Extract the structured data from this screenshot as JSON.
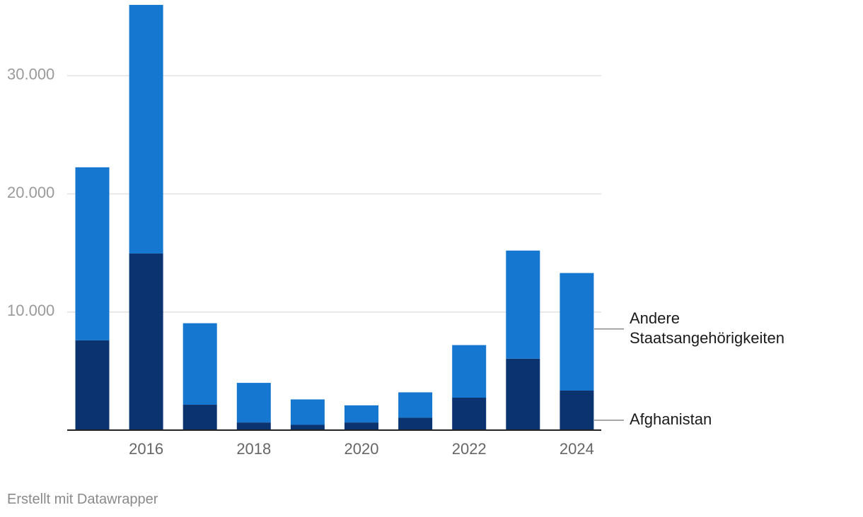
{
  "chart_data": {
    "type": "bar",
    "stacked": true,
    "x": [
      2015,
      2016,
      2017,
      2018,
      2019,
      2020,
      2021,
      2022,
      2023,
      2024
    ],
    "xticks": [
      "2016",
      "2018",
      "2020",
      "2022",
      "2024"
    ],
    "yticks": [
      "10.000",
      "20.000",
      "30.000"
    ],
    "ytick_values": [
      10000,
      20000,
      30000
    ],
    "ylim": [
      0,
      36000
    ],
    "grid": true,
    "series": [
      {
        "name": "Afghanistan",
        "color": "#0b3370",
        "values": [
          7600,
          14950,
          2150,
          650,
          450,
          650,
          1050,
          2750,
          6050,
          3350
        ]
      },
      {
        "name": "Andere Staatsangehörigkeiten",
        "name_lines": [
          "Andere",
          "Staatsangehörigkeiten"
        ],
        "color": "#1577cf",
        "values": [
          14650,
          21050,
          6900,
          3350,
          2150,
          1450,
          2150,
          4450,
          9150,
          9950
        ]
      }
    ]
  },
  "footer": {
    "credit": "Erstellt mit Datawrapper"
  }
}
